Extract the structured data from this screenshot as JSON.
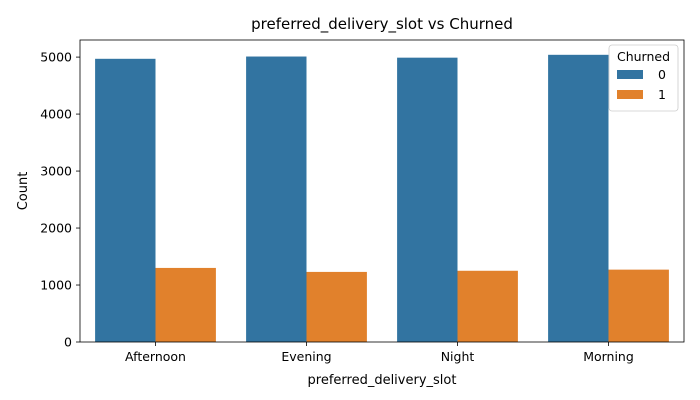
{
  "chart_data": {
    "type": "bar",
    "title": "preferred_delivery_slot vs Churned",
    "xlabel": "preferred_delivery_slot",
    "ylabel": "Count",
    "categories": [
      "Afternoon",
      "Evening",
      "Night",
      "Morning"
    ],
    "series": [
      {
        "name": "0",
        "color": "#3274a1",
        "values": [
          4970,
          5010,
          4990,
          5040
        ]
      },
      {
        "name": "1",
        "color": "#e1812c",
        "values": [
          1300,
          1230,
          1250,
          1270
        ]
      }
    ],
    "ylim": [
      0,
      5300
    ],
    "yticks": [
      0,
      1000,
      2000,
      3000,
      4000,
      5000
    ],
    "legend": {
      "title": "Churned",
      "position": "top-right"
    },
    "grid": false
  }
}
